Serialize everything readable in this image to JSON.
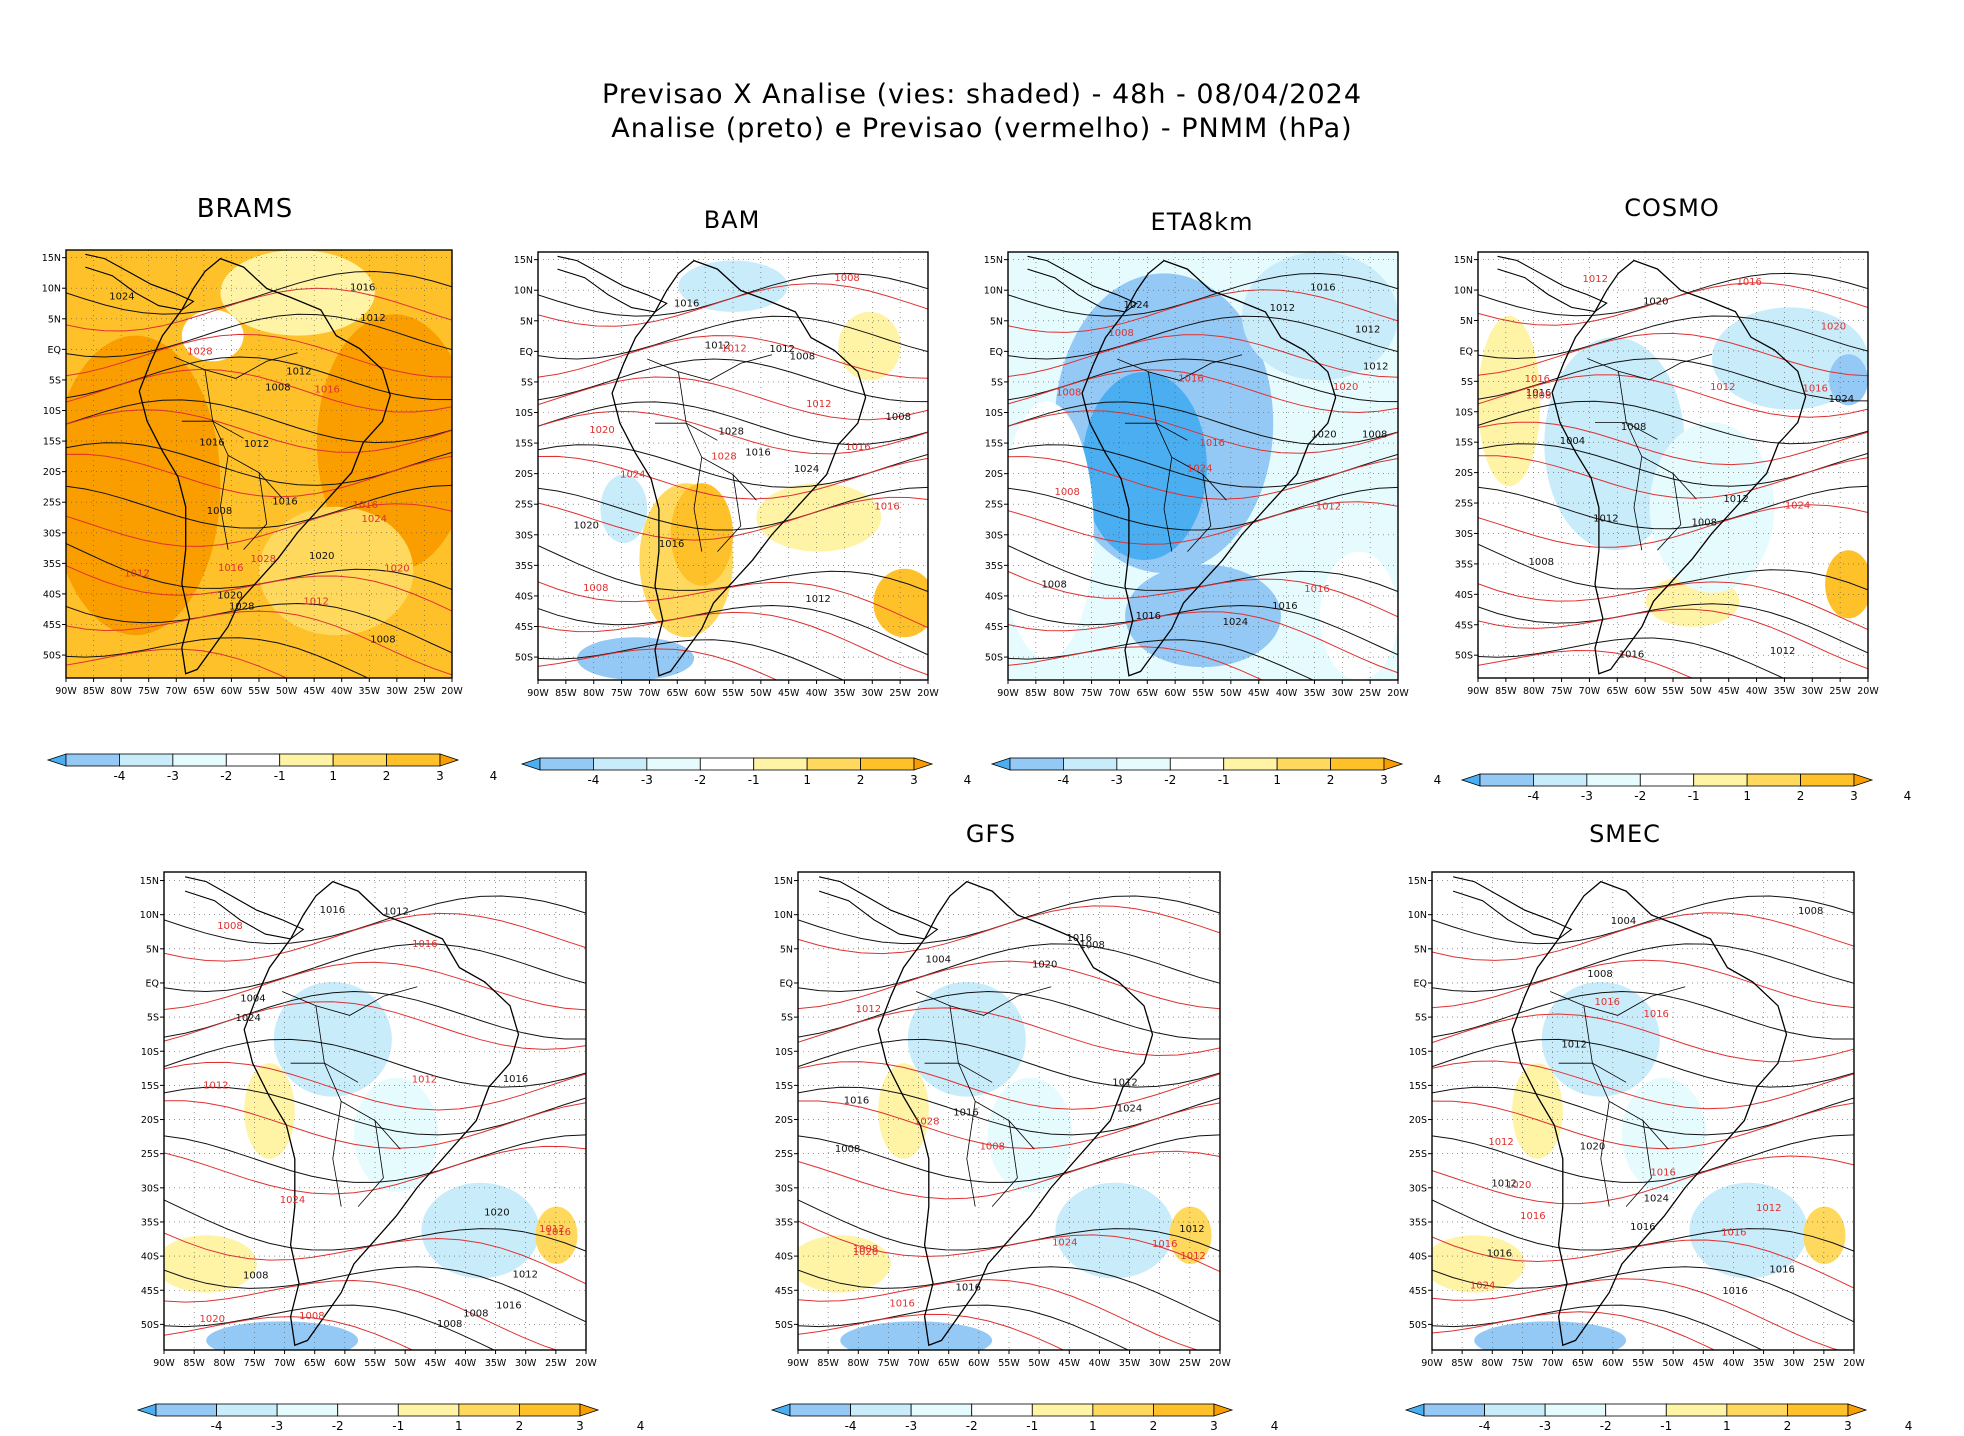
{
  "figure": {
    "title_line1": "Previsao X Analise (vies: shaded) - 48h - 08/04/2024",
    "title_line2": "Analise (preto) e Previsao (vermelho) - PNMM (hPa)"
  },
  "axes": {
    "lon_ticks": [
      "90W",
      "85W",
      "80W",
      "75W",
      "70W",
      "65W",
      "60W",
      "55W",
      "50W",
      "45W",
      "40W",
      "35W",
      "30W",
      "25W",
      "20W"
    ],
    "lat_ticks": [
      "15N",
      "10N",
      "5N",
      "EQ",
      "5S",
      "10S",
      "15S",
      "20S",
      "25S",
      "30S",
      "35S",
      "40S",
      "45S",
      "50S"
    ]
  },
  "colorbar": {
    "labels": [
      "-4",
      "-3",
      "-2",
      "-1",
      "1",
      "2",
      "3",
      "4"
    ],
    "colors": [
      "#4aaef0",
      "#95c9f5",
      "#c8ecfa",
      "#e6fbfe",
      "#ffffff",
      "#fff3a6",
      "#ffd95e",
      "#ffc12a",
      "#fa9e00"
    ]
  },
  "colors": {
    "analysis": "#111111",
    "forecast": "#e03030",
    "grid": "#555555"
  },
  "panels": [
    {
      "id": "brams",
      "title": "BRAMS",
      "bias": "warm-strong",
      "analysis_labels": [
        "1008",
        "1008",
        "1008",
        "1012",
        "1012",
        "1012",
        "1016",
        "1016",
        "1016",
        "1020",
        "1020",
        "1024",
        "1028"
      ],
      "forecast_labels": [
        "1012",
        "1012",
        "1016",
        "1016",
        "1016",
        "1020",
        "1024",
        "1028",
        "1028"
      ]
    },
    {
      "id": "bam",
      "title": "BAM",
      "bias": "mixed-warm",
      "analysis_labels": [
        "1008",
        "1012",
        "1012",
        "1012",
        "1016",
        "1016",
        "1016",
        "1020",
        "1024",
        "1028",
        "1008"
      ],
      "forecast_labels": [
        "1008",
        "1008",
        "1012",
        "1012",
        "1016",
        "1016",
        "1020",
        "1024",
        "1028"
      ]
    },
    {
      "id": "eta8km",
      "title": "ETA8km",
      "bias": "cold-strong",
      "analysis_labels": [
        "1008",
        "1008",
        "1012",
        "1012",
        "1012",
        "1016",
        "1016",
        "1016",
        "1020",
        "1024",
        "1024"
      ],
      "forecast_labels": [
        "1008",
        "1008",
        "1012",
        "1016",
        "1016",
        "1020",
        "1024",
        "1016",
        "1008"
      ]
    },
    {
      "id": "cosmo",
      "title": "COSMO",
      "bias": "mixed-cold",
      "analysis_labels": [
        "1008",
        "1008",
        "1012",
        "1012",
        "1012",
        "1016",
        "1016",
        "1020",
        "1024",
        "1008",
        "1004"
      ],
      "forecast_labels": [
        "1008",
        "1012",
        "1012",
        "1016",
        "1016",
        "1020",
        "1024",
        "1016"
      ]
    },
    {
      "id": "panel5",
      "title": "",
      "bias": "mixed-light",
      "analysis_labels": [
        "1008",
        "1008",
        "1012",
        "1012",
        "1016",
        "1016",
        "1020",
        "1024",
        "1004",
        "1016",
        "1008"
      ],
      "forecast_labels": [
        "1008",
        "1012",
        "1012",
        "1016",
        "1016",
        "1020",
        "1024",
        "1012",
        "1008"
      ]
    },
    {
      "id": "gfs",
      "title": "GFS",
      "bias": "mixed-light",
      "analysis_labels": [
        "1008",
        "1008",
        "1012",
        "1012",
        "1016",
        "1016",
        "1020",
        "1024",
        "1004",
        "1016",
        "1016"
      ],
      "forecast_labels": [
        "1008",
        "1008",
        "1012",
        "1012",
        "1016",
        "1020",
        "1024",
        "1028",
        "1016"
      ]
    },
    {
      "id": "smec",
      "title": "SMEC",
      "bias": "mixed-light",
      "analysis_labels": [
        "1008",
        "1012",
        "1012",
        "1016",
        "1016",
        "1016",
        "1020",
        "1024",
        "1004",
        "1016",
        "1008"
      ],
      "forecast_labels": [
        "1012",
        "1012",
        "1016",
        "1016",
        "1016",
        "1020",
        "1024",
        "1016",
        "1016"
      ]
    }
  ]
}
